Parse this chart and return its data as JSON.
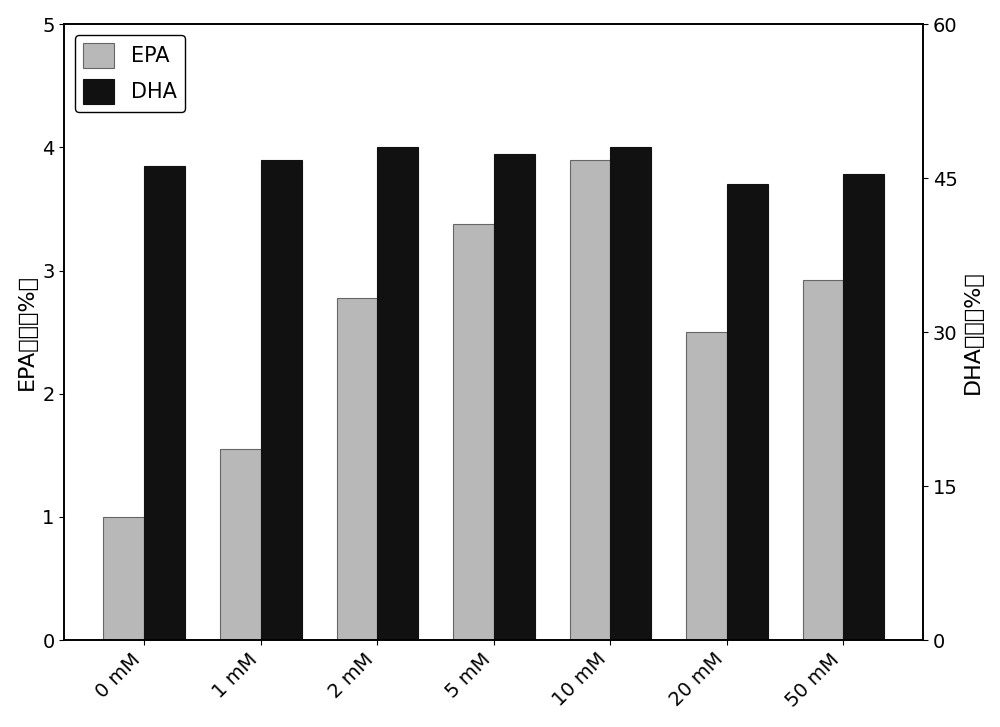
{
  "categories": [
    "0 mM",
    "1 mM",
    "2 mM",
    "5 mM",
    "10 mM",
    "20 mM",
    "50 mM"
  ],
  "epa_values": [
    1.0,
    1.55,
    2.78,
    3.38,
    3.9,
    2.5,
    2.92
  ],
  "dha_values": [
    46.2,
    46.8,
    48.0,
    47.4,
    48.0,
    44.4,
    45.4
  ],
  "epa_color": "#b8b8b8",
  "dha_color": "#111111",
  "left_ylabel": "EPA占比（%）",
  "right_ylabel": "DHA占比（%）",
  "left_ylim": [
    0,
    5
  ],
  "right_ylim": [
    0,
    60
  ],
  "left_yticks": [
    0,
    1,
    2,
    3,
    4,
    5
  ],
  "right_yticks": [
    0,
    15,
    30,
    45,
    60
  ],
  "legend_labels": [
    "EPA",
    "DHA"
  ],
  "bar_width": 0.35,
  "background_color": "#ffffff",
  "label_fontsize": 16,
  "tick_fontsize": 14,
  "legend_fontsize": 15
}
